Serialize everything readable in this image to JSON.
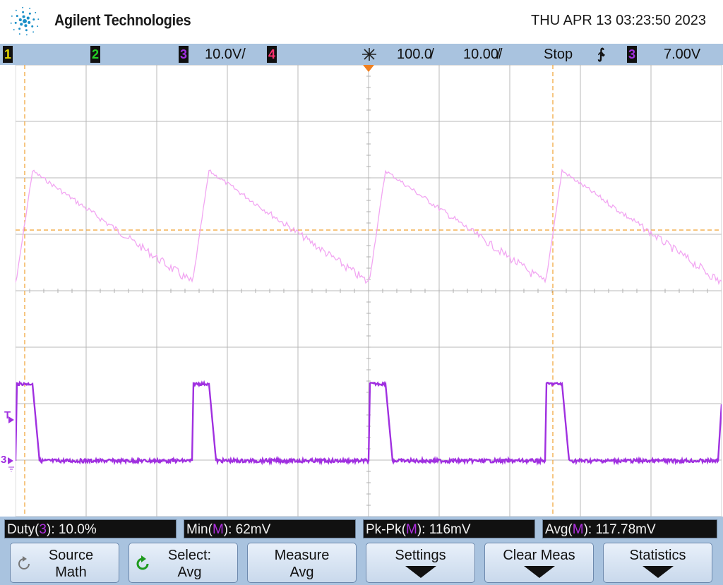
{
  "header": {
    "brand": "Agilent Technologies",
    "datetime": "THU APR 13 03:23:50 2023"
  },
  "status": {
    "ch1": "1",
    "ch2": "2",
    "ch3": "3",
    "ch3_scale": "10.0V/",
    "ch4": "4",
    "delay": "100.0̸",
    "timebase": "10.00̸/",
    "run_state": "Stop",
    "trigger_slope": "∱",
    "trigger_channel": "3",
    "trigger_level": "7.00V",
    "colors": {
      "ch1": "#e6d700",
      "ch2": "#24d024",
      "ch3": "#a030e0",
      "ch4": "#ff3070",
      "ramp": "#f2a6f2"
    }
  },
  "markers": {
    "trigger": "T",
    "ch3_ground": "3"
  },
  "measurements": [
    {
      "name": "Duty",
      "src": "3",
      "value": ": 10.0%"
    },
    {
      "name": "Min",
      "src": "M",
      "value": ": 62mV"
    },
    {
      "name": "Pk-Pk",
      "src": "M",
      "value": ": 116mV"
    },
    {
      "name": "Avg",
      "src": "M",
      "value": ": 117.78mV"
    }
  ],
  "softkeys": [
    {
      "line1": "Source",
      "line2": "Math",
      "icon": "rotate-knob-icon"
    },
    {
      "line1": "Select:",
      "line2": "Avg",
      "icon": "select-knob-icon"
    },
    {
      "line1": "Measure",
      "line2": "Avg"
    },
    {
      "line1": "Settings",
      "line2": ""
    },
    {
      "line1": "Clear Meas",
      "line2": ""
    },
    {
      "line1": "Statistics",
      "line2": ""
    }
  ],
  "waveform": {
    "period_divisions": 2.5,
    "math_trace": "sawtooth",
    "ch3_trace": "pulse",
    "ch3_duty": 0.1
  }
}
